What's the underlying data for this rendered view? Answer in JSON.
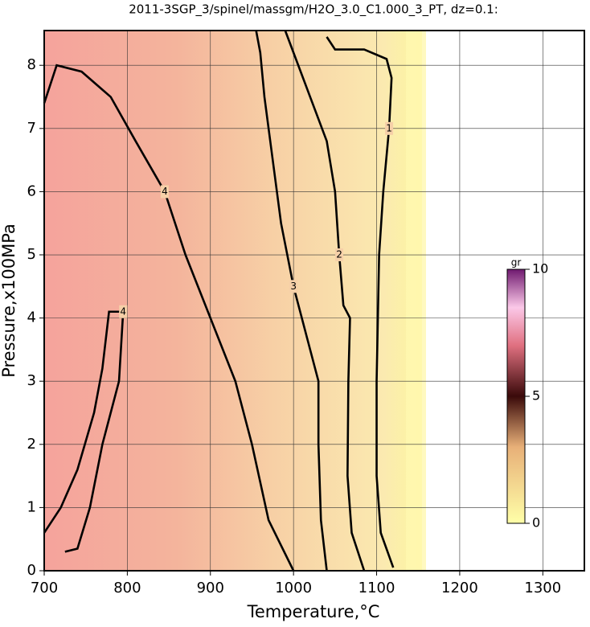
{
  "chart_data": {
    "type": "contour",
    "title": "2011-3SGP_3/spinel/massgm/H2O_3.0_C1.000_3_PT, dz=0.1:",
    "x_label": "Temperature,°C",
    "y_label": "Pressure,x100MPa",
    "xlim": [
      700,
      1350
    ],
    "ylim": [
      0,
      8.55
    ],
    "xticks": [
      700,
      800,
      900,
      1000,
      1100,
      1200,
      1300
    ],
    "yticks": [
      0,
      1,
      2,
      3,
      4,
      5,
      6,
      7,
      8
    ],
    "grid": true,
    "contours": [
      {
        "level": 1,
        "x": [
          1120,
          1105,
          1100,
          1100,
          1103,
          1108,
          1115,
          1118,
          1112,
          1085,
          1050,
          1040
        ],
        "y": [
          0.05,
          0.6,
          1.5,
          3,
          5,
          6,
          7,
          7.8,
          8.1,
          8.25,
          8.25,
          8.45
        ]
      },
      {
        "level": 2,
        "x": [
          1085,
          1070,
          1065,
          1066,
          1068,
          1060,
          1055,
          1050,
          1040,
          1020,
          1000,
          990
        ],
        "y": [
          0,
          0.6,
          1.5,
          3,
          4,
          4.2,
          5,
          6,
          6.8,
          7.5,
          8.2,
          8.55
        ]
      },
      {
        "level": 3,
        "x": [
          1040,
          1033,
          1030,
          1030,
          1020,
          1000,
          985,
          975,
          965,
          960,
          955
        ],
        "y": [
          0,
          0.8,
          2,
          3,
          3.5,
          4.5,
          5.5,
          6.5,
          7.5,
          8.2,
          8.55
        ]
      },
      {
        "level": 4,
        "x": [
          1000,
          970,
          950,
          930,
          900,
          870,
          845,
          810,
          780,
          745,
          715,
          700
        ],
        "y": [
          0,
          0.8,
          2,
          3,
          4,
          5,
          6,
          6.8,
          7.5,
          7.9,
          8.0,
          7.4
        ]
      },
      {
        "level": 4,
        "x": [
          700,
          720,
          740,
          760,
          770,
          778,
          795,
          790,
          780,
          770,
          755,
          740,
          725
        ],
        "y": [
          0.6,
          1,
          1.6,
          2.5,
          3.2,
          4.1,
          4.1,
          3,
          2.5,
          2,
          1,
          0.35,
          0.3
        ]
      }
    ],
    "colorbar": {
      "label": "gr",
      "lim": [
        0,
        10
      ],
      "ticks": [
        0,
        5,
        10
      ]
    }
  }
}
